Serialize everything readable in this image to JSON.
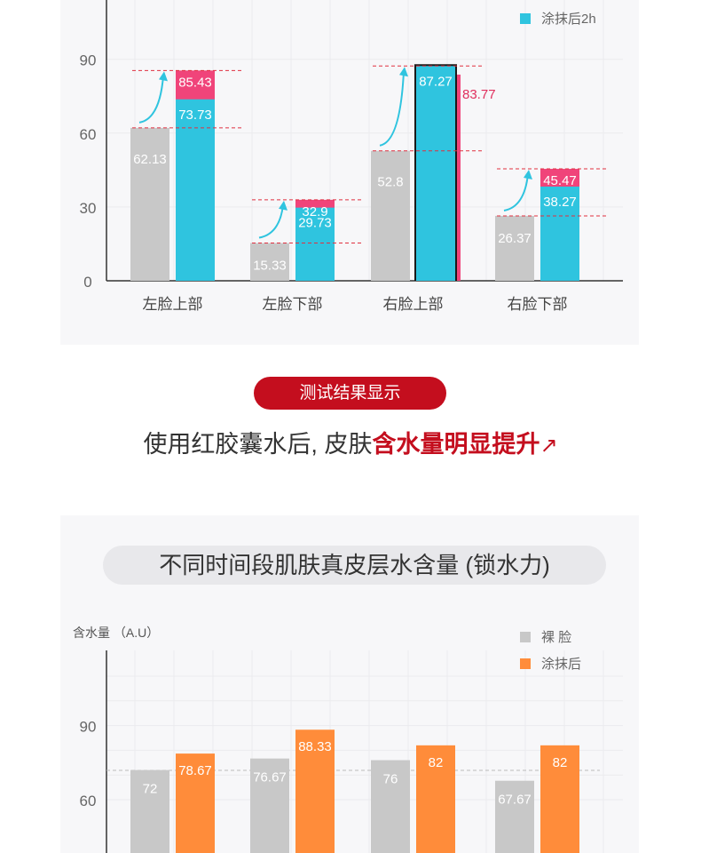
{
  "chart_data": [
    {
      "type": "bar",
      "categories": [
        "左脸上部",
        "左脸下部",
        "右脸上部",
        "右脸下部"
      ],
      "series": [
        {
          "name": "",
          "color": "#c8c8c8",
          "values": [
            62.13,
            15.33,
            52.8,
            26.37
          ]
        },
        {
          "name": "涂抹后2h",
          "color": "#2fc4df",
          "values": [
            73.73,
            29.73,
            87.27,
            38.27
          ]
        },
        {
          "name": "",
          "color": "#f0447a",
          "values": [
            85.43,
            32.9,
            83.77,
            45.47
          ]
        }
      ],
      "ylim": [
        0,
        120
      ],
      "yticks": [
        0,
        30,
        60,
        90
      ],
      "grid": true,
      "legend_position": "top-right",
      "legend": [
        "涂抹后2h"
      ]
    },
    {
      "type": "bar",
      "title": "不同时间段肌肤真皮层水含量 (锁水力)",
      "ylabel": "含水量 （A.U）",
      "categories": [
        "",
        "",
        "",
        ""
      ],
      "series": [
        {
          "name": "裸 脸",
          "color": "#c8c8c8",
          "values": [
            72,
            76.67,
            76,
            67.67
          ]
        },
        {
          "name": "涂抹后",
          "color": "#ff8c3a",
          "values": [
            78.67,
            88.33,
            82,
            82
          ]
        }
      ],
      "ylim": [
        0,
        120
      ],
      "yticks": [
        60,
        90
      ],
      "grid": true,
      "legend_position": "top-right"
    }
  ],
  "result": {
    "pill": "测试结果显示",
    "headline_plain": "使用红胶囊水后, 皮肤",
    "headline_highlight": "含水量明显提升",
    "headline_arrow": "↗"
  }
}
